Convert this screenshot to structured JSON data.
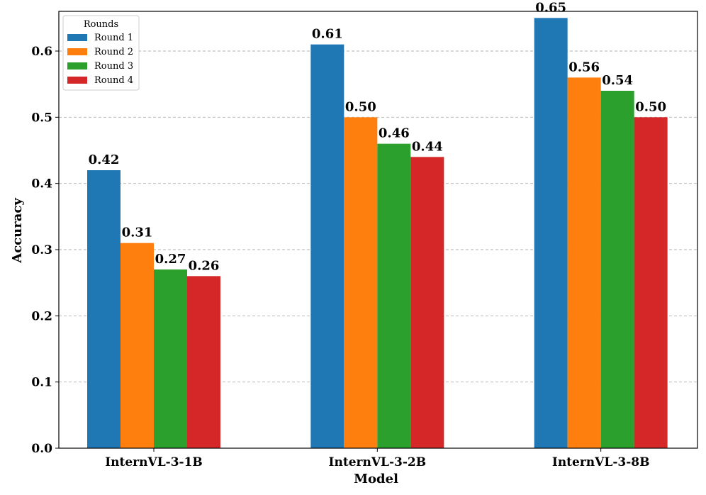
{
  "chart_data": {
    "type": "bar",
    "title": "",
    "xlabel": "Model",
    "ylabel": "Accuracy",
    "ylim": [
      0,
      0.66
    ],
    "yticks": [
      "0.0",
      "0.1",
      "0.2",
      "0.3",
      "0.4",
      "0.5",
      "0.6"
    ],
    "grid": "horizontal dashed",
    "categories": [
      "InternVL-3-1B",
      "InternVL-3-2B",
      "InternVL-3-8B"
    ],
    "legend": {
      "title": "Rounds",
      "placement": "top-left"
    },
    "series": [
      {
        "name": "Round 1",
        "color": "#1f77b4",
        "values": [
          0.42,
          0.61,
          0.65
        ],
        "labels": [
          "0.42",
          "0.61",
          "0.65"
        ]
      },
      {
        "name": "Round 2",
        "color": "#ff7f0e",
        "values": [
          0.31,
          0.5,
          0.56
        ],
        "labels": [
          "0.31",
          "0.50",
          "0.56"
        ]
      },
      {
        "name": "Round 3",
        "color": "#2ca02c",
        "values": [
          0.27,
          0.46,
          0.54
        ],
        "labels": [
          "0.27",
          "0.46",
          "0.54"
        ]
      },
      {
        "name": "Round 4",
        "color": "#d62728",
        "values": [
          0.26,
          0.44,
          0.5
        ],
        "labels": [
          "0.26",
          "0.44",
          "0.50"
        ]
      }
    ]
  }
}
